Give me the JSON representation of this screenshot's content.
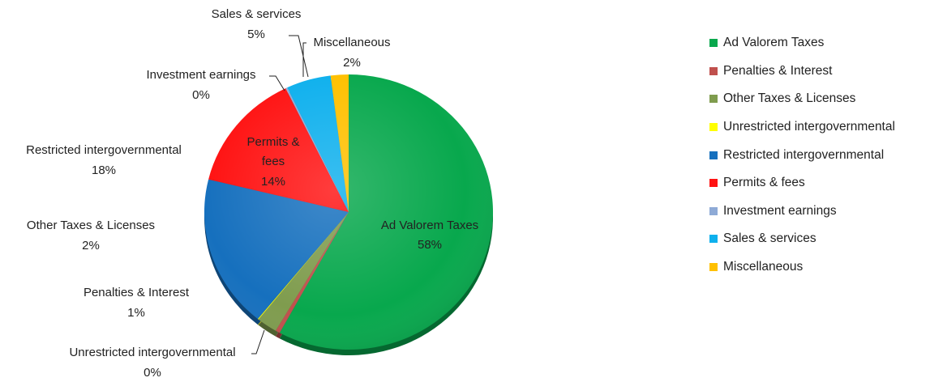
{
  "chart_data": {
    "type": "pie",
    "slices": [
      {
        "label": "Ad Valorem Taxes",
        "value": 58,
        "pct_label": "58%",
        "color": "#08a84d"
      },
      {
        "label": "Penalties & Interest",
        "value": 0.5,
        "pct_label": "1%",
        "color": "#c0504d"
      },
      {
        "label": "Other Taxes & Licenses",
        "value": 2.3,
        "pct_label": "2%",
        "color": "#7f9c4e"
      },
      {
        "label": "Unrestricted intergovernmental",
        "value": 0.1,
        "pct_label": "0%",
        "color": "#ffff00"
      },
      {
        "label": "Restricted intergovernmental",
        "value": 18,
        "pct_label": "18%",
        "color": "#1670be"
      },
      {
        "label": "Permits & fees",
        "value": 14,
        "pct_label": "14%",
        "color": "#ff1212"
      },
      {
        "label": "Investment earnings",
        "value": 0.2,
        "pct_label": "0%",
        "color": "#8eaad6"
      },
      {
        "label": "Sales & services",
        "value": 5,
        "pct_label": "5%",
        "color": "#0eb0ed"
      },
      {
        "label": "Miscellaneous",
        "value": 2,
        "pct_label": "2%",
        "color": "#ffc000"
      }
    ],
    "legend_position": "right"
  }
}
